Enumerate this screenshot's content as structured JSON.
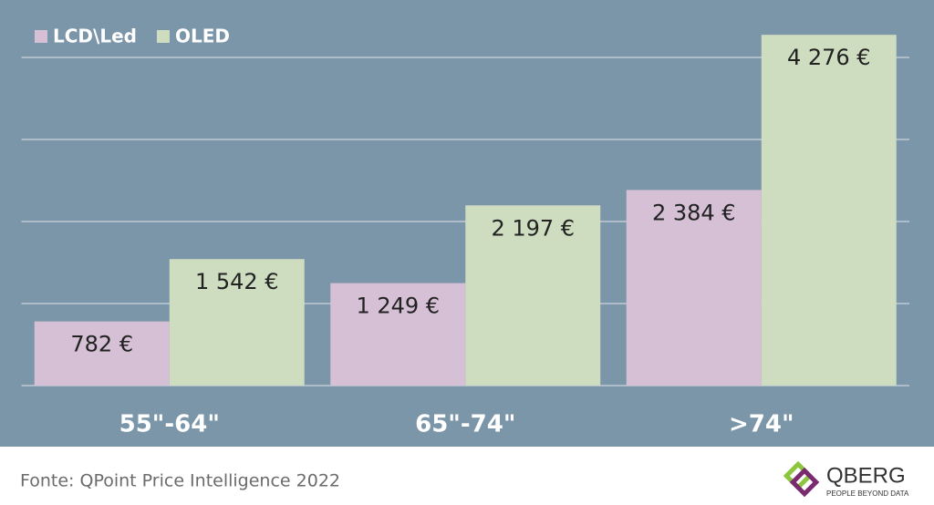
{
  "chart_data": {
    "type": "bar",
    "categories": [
      "55\"-64\"",
      "65\"-74\"",
      ">74\""
    ],
    "series": [
      {
        "name": "LCD\\Led",
        "color": "#d5c0d6",
        "values": [
          782,
          1249,
          2384
        ],
        "value_labels": [
          "782 €",
          "1 249 €",
          "2 384 €"
        ]
      },
      {
        "name": "OLED",
        "color": "#cedcbf",
        "values": [
          1542,
          2197,
          4276
        ],
        "value_labels": [
          "1 542 €",
          "2 197 €",
          "4 276 €"
        ]
      }
    ],
    "ylim": [
      0,
      4700
    ],
    "yticks": [
      0,
      1000,
      2000,
      3000,
      4000
    ],
    "grid": true,
    "legend": "top-left"
  },
  "footer": {
    "source": "Fonte: QPoint Price Intelligence 2022",
    "logo_name": "QBERG",
    "logo_tagline": "PEOPLE BEYOND DATA"
  }
}
